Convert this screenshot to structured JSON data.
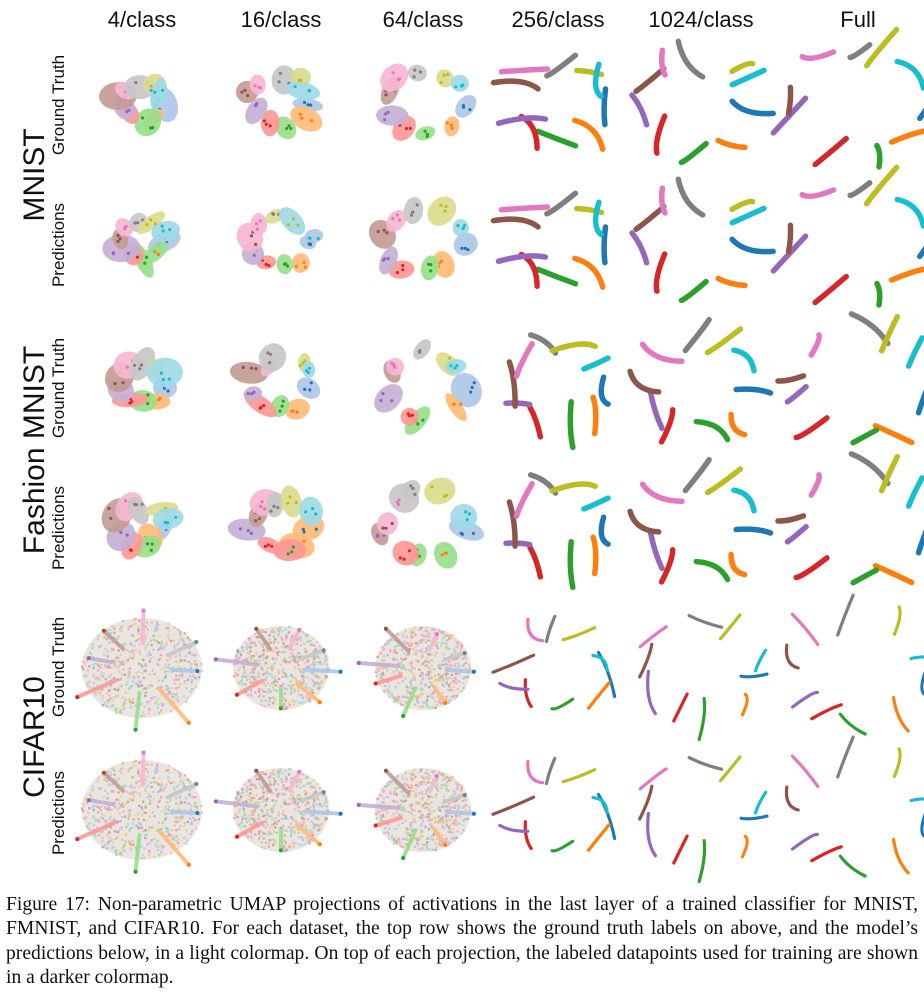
{
  "columns": [
    "4/class",
    "16/class",
    "64/class",
    "256/class",
    "1024/class",
    "Full"
  ],
  "datasets": [
    {
      "name": "MNIST",
      "rows": [
        "Ground Truth",
        "Predictions"
      ]
    },
    {
      "name": "Fashion MNIST",
      "rows": [
        "Ground Truth",
        "Predictions"
      ]
    },
    {
      "name": "CIFAR10",
      "rows": [
        "Ground Truth",
        "Predictions"
      ]
    }
  ],
  "caption": "Figure 17: Non-parametric UMAP projections of activations in the last layer of a trained classifier for MNIST, FMNIST, and CIFAR10. For each dataset, the top row shows the ground truth labels on above, and the model’s predictions below, in a light colormap. On top of each projection, the labeled datapoints used for training are shown in a darker colormap.",
  "colors": {
    "dark": [
      "#1f77b4",
      "#ff7f0e",
      "#2ca02c",
      "#d62728",
      "#9467bd",
      "#8c564b",
      "#e377c2",
      "#7f7f7f",
      "#bcbd22",
      "#17becf"
    ],
    "light": [
      "#aec7e8",
      "#ffbb78",
      "#98df8a",
      "#ff9896",
      "#c5b0d5",
      "#c49c94",
      "#f7b6d2",
      "#c7c7c7",
      "#dbdb8d",
      "#9edae5"
    ]
  }
}
